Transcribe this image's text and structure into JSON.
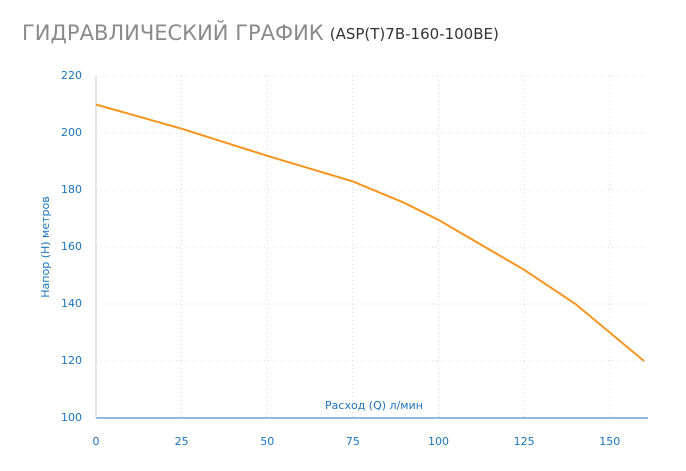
{
  "chart_data": {
    "type": "line",
    "title": "ГИДРАВЛИЧЕСКИЙ ГРАФИК",
    "subtitle": "(ASP(T)7B-160-100BE)",
    "x_label": "Расход (Q) л/мин",
    "y_label": "Напор (H) метров",
    "x": [
      0,
      25,
      50,
      75,
      90,
      100,
      125,
      140,
      150,
      160
    ],
    "series": [
      {
        "name": "ASP(T)7B-160-100BE",
        "color": "#f7941d",
        "values": [
          210,
          201.5,
          192,
          183,
          175.5,
          169.5,
          152,
          140,
          130,
          120
        ]
      }
    ],
    "xlim": [
      0,
      160
    ],
    "ylim": [
      100,
      220
    ],
    "xticks": [
      0,
      25,
      50,
      75,
      100,
      125,
      150
    ],
    "yticks": [
      100,
      120,
      140,
      160,
      180,
      200,
      220
    ],
    "grid": true
  }
}
